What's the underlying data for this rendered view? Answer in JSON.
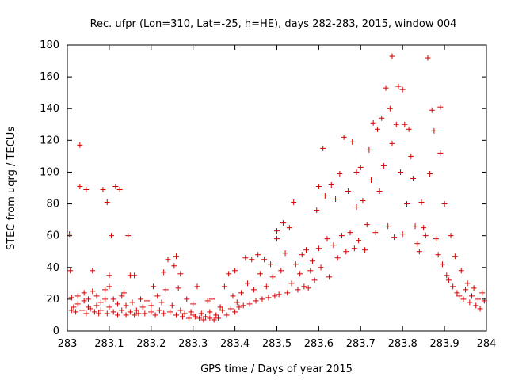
{
  "chart_data": {
    "type": "scatter",
    "title": "Rec. ufpr (Lon=310, Lat=-25, h=HE), days 282-283, 2015, window 004",
    "xlabel": "GPS time / Days of year 2015",
    "ylabel": "STEC from uqrg / TECUs",
    "xlim": [
      283,
      284
    ],
    "ylim": [
      0,
      180
    ],
    "xticks": [
      "283",
      "283.1",
      "283.2",
      "283.3",
      "283.4",
      "283.5",
      "283.6",
      "283.7",
      "283.8",
      "283.9",
      "284"
    ],
    "yticks": [
      "0",
      "20",
      "40",
      "60",
      "80",
      "100",
      "120",
      "140",
      "160",
      "180"
    ],
    "grid": false,
    "marker": "+",
    "color": "#d40000",
    "points": [
      [
        283.005,
        61
      ],
      [
        283.007,
        38
      ],
      [
        283.01,
        13
      ],
      [
        283.01,
        21
      ],
      [
        283.015,
        15
      ],
      [
        283.02,
        12
      ],
      [
        283.025,
        17
      ],
      [
        283.025,
        22
      ],
      [
        283.03,
        117
      ],
      [
        283.03,
        91
      ],
      [
        283.035,
        13
      ],
      [
        283.04,
        19
      ],
      [
        283.04,
        24
      ],
      [
        283.045,
        89
      ],
      [
        283.045,
        11
      ],
      [
        283.05,
        15
      ],
      [
        283.05,
        20
      ],
      [
        283.055,
        14
      ],
      [
        283.06,
        38
      ],
      [
        283.06,
        25
      ],
      [
        283.065,
        12
      ],
      [
        283.07,
        16
      ],
      [
        283.07,
        22
      ],
      [
        283.075,
        11
      ],
      [
        283.08,
        18
      ],
      [
        283.08,
        13
      ],
      [
        283.085,
        89
      ],
      [
        283.09,
        20
      ],
      [
        283.09,
        26
      ],
      [
        283.095,
        81
      ],
      [
        283.095,
        11
      ],
      [
        283.1,
        35
      ],
      [
        283.1,
        15
      ],
      [
        283.1,
        28
      ],
      [
        283.105,
        60
      ],
      [
        283.11,
        12
      ],
      [
        283.11,
        20
      ],
      [
        283.115,
        91
      ],
      [
        283.12,
        10
      ],
      [
        283.12,
        17
      ],
      [
        283.125,
        89
      ],
      [
        283.13,
        13
      ],
      [
        283.13,
        22
      ],
      [
        283.135,
        24
      ],
      [
        283.14,
        10
      ],
      [
        283.14,
        16
      ],
      [
        283.145,
        60
      ],
      [
        283.15,
        35
      ],
      [
        283.15,
        12
      ],
      [
        283.155,
        18
      ],
      [
        283.16,
        10
      ],
      [
        283.16,
        35
      ],
      [
        283.165,
        13
      ],
      [
        283.17,
        11
      ],
      [
        283.175,
        20
      ],
      [
        283.18,
        15
      ],
      [
        283.185,
        11
      ],
      [
        283.19,
        19
      ],
      [
        283.2,
        12
      ],
      [
        283.2,
        16
      ],
      [
        283.205,
        28
      ],
      [
        283.21,
        10
      ],
      [
        283.215,
        22
      ],
      [
        283.22,
        13
      ],
      [
        283.225,
        18
      ],
      [
        283.23,
        37
      ],
      [
        283.23,
        11
      ],
      [
        283.235,
        26
      ],
      [
        283.24,
        45
      ],
      [
        283.245,
        12
      ],
      [
        283.25,
        16
      ],
      [
        283.255,
        41
      ],
      [
        283.26,
        47
      ],
      [
        283.26,
        10
      ],
      [
        283.265,
        27
      ],
      [
        283.27,
        36
      ],
      [
        283.27,
        13
      ],
      [
        283.275,
        9
      ],
      [
        283.28,
        11
      ],
      [
        283.285,
        20
      ],
      [
        283.29,
        8
      ],
      [
        283.295,
        12
      ],
      [
        283.3,
        10
      ],
      [
        283.3,
        17
      ],
      [
        283.305,
        9
      ],
      [
        283.31,
        28
      ],
      [
        283.315,
        8
      ],
      [
        283.32,
        11
      ],
      [
        283.325,
        7
      ],
      [
        283.33,
        9
      ],
      [
        283.335,
        19
      ],
      [
        283.34,
        8
      ],
      [
        283.34,
        12
      ],
      [
        283.345,
        20
      ],
      [
        283.35,
        7
      ],
      [
        283.355,
        10
      ],
      [
        283.36,
        8
      ],
      [
        283.365,
        15
      ],
      [
        283.37,
        13
      ],
      [
        283.375,
        28
      ],
      [
        283.38,
        10
      ],
      [
        283.385,
        36
      ],
      [
        283.39,
        14
      ],
      [
        283.395,
        22
      ],
      [
        283.4,
        38
      ],
      [
        283.4,
        12
      ],
      [
        283.405,
        18
      ],
      [
        283.41,
        15
      ],
      [
        283.415,
        24
      ],
      [
        283.42,
        16
      ],
      [
        283.425,
        46
      ],
      [
        283.43,
        30
      ],
      [
        283.435,
        17
      ],
      [
        283.44,
        45
      ],
      [
        283.445,
        26
      ],
      [
        283.45,
        19
      ],
      [
        283.455,
        48
      ],
      [
        283.46,
        36
      ],
      [
        283.465,
        20
      ],
      [
        283.47,
        45
      ],
      [
        283.475,
        28
      ],
      [
        283.48,
        21
      ],
      [
        283.485,
        42
      ],
      [
        283.49,
        34
      ],
      [
        283.495,
        22
      ],
      [
        283.5,
        63
      ],
      [
        283.5,
        58
      ],
      [
        283.505,
        23
      ],
      [
        283.51,
        38
      ],
      [
        283.515,
        68
      ],
      [
        283.52,
        49
      ],
      [
        283.525,
        24
      ],
      [
        283.53,
        65
      ],
      [
        283.535,
        30
      ],
      [
        283.54,
        81
      ],
      [
        283.545,
        42
      ],
      [
        283.55,
        26
      ],
      [
        283.555,
        36
      ],
      [
        283.56,
        48
      ],
      [
        283.565,
        28
      ],
      [
        283.57,
        51
      ],
      [
        283.575,
        27
      ],
      [
        283.58,
        38
      ],
      [
        283.585,
        44
      ],
      [
        283.59,
        32
      ],
      [
        283.595,
        76
      ],
      [
        283.6,
        91
      ],
      [
        283.6,
        52
      ],
      [
        283.605,
        40
      ],
      [
        283.61,
        115
      ],
      [
        283.615,
        85
      ],
      [
        283.62,
        58
      ],
      [
        283.625,
        34
      ],
      [
        283.63,
        92
      ],
      [
        283.635,
        54
      ],
      [
        283.64,
        83
      ],
      [
        283.645,
        46
      ],
      [
        283.65,
        99
      ],
      [
        283.655,
        60
      ],
      [
        283.66,
        122
      ],
      [
        283.665,
        50
      ],
      [
        283.67,
        88
      ],
      [
        283.675,
        62
      ],
      [
        283.68,
        119
      ],
      [
        283.685,
        52
      ],
      [
        283.69,
        100
      ],
      [
        283.69,
        78
      ],
      [
        283.695,
        57
      ],
      [
        283.7,
        103
      ],
      [
        283.705,
        82
      ],
      [
        283.71,
        51
      ],
      [
        283.715,
        67
      ],
      [
        283.72,
        114
      ],
      [
        283.725,
        95
      ],
      [
        283.73,
        131
      ],
      [
        283.735,
        62
      ],
      [
        283.74,
        127
      ],
      [
        283.745,
        88
      ],
      [
        283.75,
        134
      ],
      [
        283.755,
        104
      ],
      [
        283.76,
        153
      ],
      [
        283.765,
        66
      ],
      [
        283.77,
        140
      ],
      [
        283.775,
        173
      ],
      [
        283.775,
        118
      ],
      [
        283.78,
        59
      ],
      [
        283.785,
        130
      ],
      [
        283.79,
        154
      ],
      [
        283.795,
        100
      ],
      [
        283.8,
        152
      ],
      [
        283.8,
        61
      ],
      [
        283.805,
        130
      ],
      [
        283.81,
        80
      ],
      [
        283.815,
        127
      ],
      [
        283.82,
        110
      ],
      [
        283.825,
        96
      ],
      [
        283.83,
        66
      ],
      [
        283.835,
        55
      ],
      [
        283.84,
        50
      ],
      [
        283.845,
        81
      ],
      [
        283.85,
        65
      ],
      [
        283.855,
        60
      ],
      [
        283.86,
        172
      ],
      [
        283.865,
        99
      ],
      [
        283.87,
        139
      ],
      [
        283.875,
        126
      ],
      [
        283.88,
        58
      ],
      [
        283.885,
        48
      ],
      [
        283.89,
        141
      ],
      [
        283.89,
        112
      ],
      [
        283.895,
        42
      ],
      [
        283.9,
        80
      ],
      [
        283.905,
        35
      ],
      [
        283.91,
        32
      ],
      [
        283.915,
        60
      ],
      [
        283.92,
        28
      ],
      [
        283.925,
        47
      ],
      [
        283.93,
        24
      ],
      [
        283.935,
        22
      ],
      [
        283.94,
        38
      ],
      [
        283.945,
        20
      ],
      [
        283.95,
        26
      ],
      [
        283.955,
        30
      ],
      [
        283.96,
        18
      ],
      [
        283.965,
        22
      ],
      [
        283.97,
        27
      ],
      [
        283.975,
        16
      ],
      [
        283.98,
        20
      ],
      [
        283.985,
        14
      ],
      [
        283.99,
        24
      ],
      [
        283.995,
        19
      ]
    ]
  }
}
